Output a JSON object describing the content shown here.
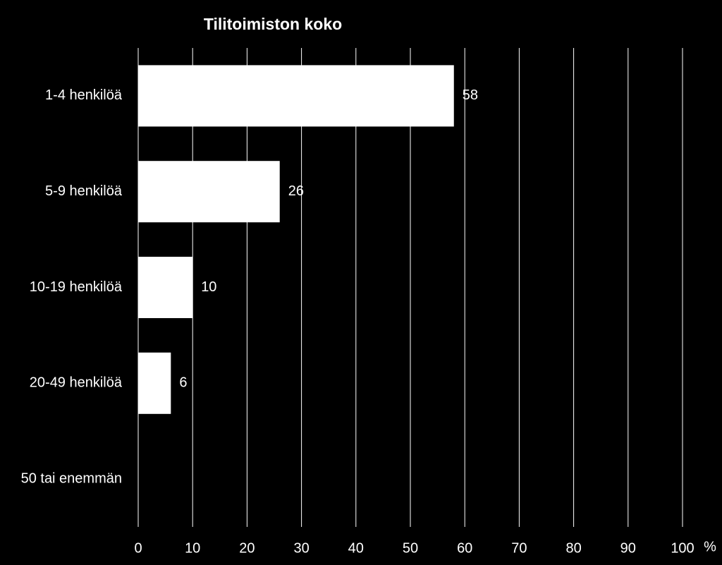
{
  "chart_data": {
    "type": "barh",
    "title": "Tilitoimiston koko",
    "categories": [
      "1-4 henkilöä",
      "5-9 henkilöä",
      "10-19 henkilöä",
      "20-49 henkilöä",
      "50 tai enemmän"
    ],
    "values": [
      58,
      26,
      10,
      6,
      null
    ],
    "color": "#ffffff",
    "x_label": "%",
    "xlim": [
      0,
      100
    ],
    "xticks": [
      0,
      10,
      20,
      30,
      40,
      50,
      60,
      70,
      80,
      90,
      100
    ],
    "grid": true
  }
}
